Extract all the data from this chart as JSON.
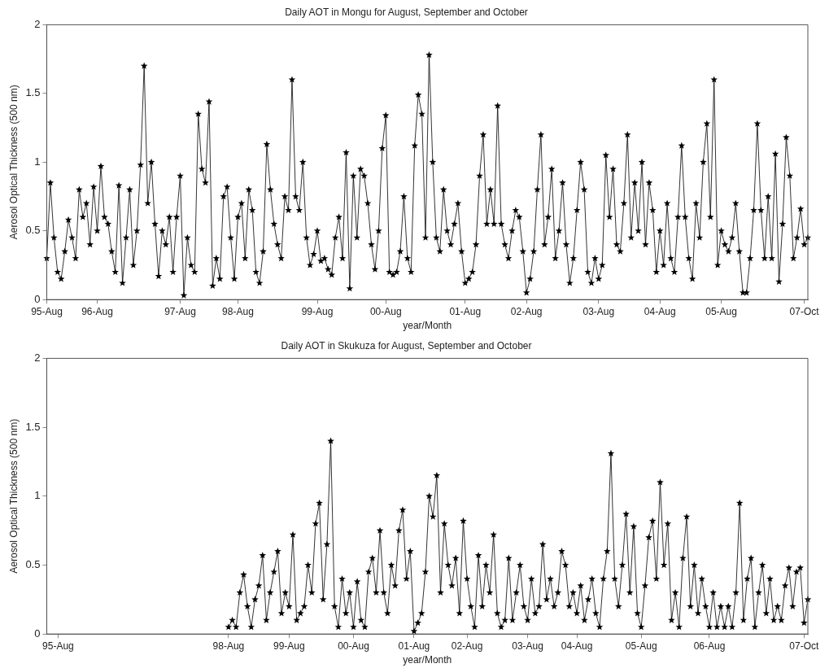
{
  "chart_data": [
    {
      "type": "line",
      "title": "Daily AOT in Mongu for August, September and October",
      "xlabel": "year/Month",
      "ylabel": "Aerosol Optical Thickness (500 nm)",
      "color": "#000000",
      "marker": "star",
      "grid": false,
      "categories": [
        "95-Aug",
        null,
        null,
        null,
        null,
        null,
        null,
        null,
        null,
        null,
        null,
        null,
        null,
        null,
        "96-Aug",
        null,
        null,
        null,
        null,
        null,
        null,
        null,
        null,
        null,
        null,
        null,
        null,
        null,
        null,
        null,
        null,
        null,
        null,
        null,
        null,
        null,
        null,
        "97-Aug",
        null,
        null,
        null,
        null,
        null,
        null,
        null,
        null,
        null,
        null,
        null,
        null,
        null,
        null,
        null,
        "98-Aug",
        null,
        null,
        null,
        null,
        null,
        null,
        null,
        null,
        null,
        null,
        null,
        null,
        null,
        null,
        null,
        null,
        null,
        null,
        null,
        null,
        null,
        "99-Aug",
        null,
        null,
        null,
        null,
        null,
        null,
        null,
        null,
        null,
        null,
        null,
        null,
        null,
        null,
        null,
        null,
        null,
        null,
        "00-Aug",
        null,
        null,
        null,
        null,
        null,
        null,
        null,
        null,
        null,
        null,
        null,
        null,
        null,
        null,
        null,
        null,
        null,
        null,
        null,
        null,
        null,
        "01-Aug",
        null,
        null,
        null,
        null,
        null,
        null,
        null,
        null,
        null,
        null,
        null,
        null,
        null,
        null,
        null,
        null,
        "02-Aug",
        null,
        null,
        null,
        null,
        null,
        null,
        null,
        null,
        null,
        null,
        null,
        null,
        null,
        null,
        null,
        null,
        null,
        null,
        null,
        "03-Aug",
        null,
        null,
        null,
        null,
        null,
        null,
        null,
        null,
        null,
        null,
        null,
        null,
        null,
        null,
        null,
        null,
        "04-Aug",
        null,
        null,
        null,
        null,
        null,
        null,
        null,
        null,
        null,
        null,
        null,
        null,
        null,
        null,
        null,
        null,
        "05-Aug",
        null,
        null,
        null,
        null,
        null,
        null,
        null,
        null,
        null,
        null,
        null,
        null,
        null,
        null,
        null,
        null,
        null,
        null,
        null,
        null,
        null,
        null,
        "07-Oct",
        null
      ],
      "ylim": [
        0,
        2
      ],
      "yticks": [
        0,
        0.5,
        1,
        1.5,
        2
      ],
      "values": [
        0.3,
        0.85,
        0.45,
        0.2,
        0.15,
        0.35,
        0.58,
        0.45,
        0.3,
        0.8,
        0.6,
        0.7,
        0.4,
        0.82,
        0.5,
        0.97,
        0.6,
        0.55,
        0.35,
        0.2,
        0.83,
        0.12,
        0.45,
        0.8,
        0.25,
        0.5,
        0.98,
        1.7,
        0.7,
        1.0,
        0.55,
        0.17,
        0.5,
        0.4,
        0.6,
        0.2,
        0.6,
        0.9,
        0.03,
        0.45,
        0.25,
        0.2,
        1.35,
        0.95,
        0.85,
        1.44,
        0.1,
        0.3,
        0.15,
        0.75,
        0.82,
        0.45,
        0.15,
        0.6,
        0.7,
        0.3,
        0.8,
        0.65,
        0.2,
        0.12,
        0.35,
        1.13,
        0.8,
        0.55,
        0.4,
        0.3,
        0.75,
        0.65,
        1.6,
        0.75,
        0.65,
        1.0,
        0.45,
        0.25,
        0.33,
        0.5,
        0.28,
        0.3,
        0.22,
        0.18,
        0.45,
        0.6,
        0.3,
        1.07,
        0.08,
        0.9,
        0.45,
        0.95,
        0.9,
        0.7,
        0.4,
        0.22,
        0.5,
        1.1,
        1.34,
        0.2,
        0.18,
        0.2,
        0.35,
        0.75,
        0.3,
        0.2,
        1.12,
        1.49,
        1.35,
        0.45,
        1.78,
        1.0,
        0.45,
        0.35,
        0.8,
        0.5,
        0.4,
        0.55,
        0.7,
        0.35,
        0.12,
        0.15,
        0.2,
        0.4,
        0.9,
        1.2,
        0.55,
        0.8,
        0.55,
        1.41,
        0.55,
        0.4,
        0.3,
        0.5,
        0.65,
        0.6,
        0.35,
        0.05,
        0.15,
        0.35,
        0.8,
        1.2,
        0.4,
        0.6,
        0.95,
        0.3,
        0.5,
        0.85,
        0.4,
        0.12,
        0.3,
        0.65,
        1.0,
        0.8,
        0.2,
        0.12,
        0.3,
        0.15,
        0.25,
        1.05,
        0.6,
        0.95,
        0.4,
        0.35,
        0.7,
        1.2,
        0.45,
        0.85,
        0.5,
        1.0,
        0.4,
        0.85,
        0.65,
        0.2,
        0.5,
        0.25,
        0.7,
        0.3,
        0.2,
        0.6,
        1.12,
        0.6,
        0.3,
        0.15,
        0.7,
        0.45,
        1.0,
        1.28,
        0.6,
        1.6,
        0.25,
        0.5,
        0.4,
        0.35,
        0.45,
        0.7,
        0.35,
        0.05,
        0.05,
        0.3,
        0.65,
        1.28,
        0.65,
        0.3,
        0.75,
        0.3,
        1.06,
        0.13,
        0.55,
        1.18,
        0.9,
        0.3,
        0.45,
        0.66,
        0.4,
        0.45
      ]
    },
    {
      "type": "line",
      "title": "Daily AOT in Skukuza for August, September and October",
      "xlabel": "year/Month",
      "ylabel": "Aerosol Optical Thickness (500 nm)",
      "color": "#000000",
      "marker": "star",
      "grid": false,
      "categories": [
        null,
        null,
        null,
        "95-Aug",
        null,
        null,
        null,
        null,
        null,
        null,
        null,
        null,
        null,
        null,
        null,
        null,
        null,
        null,
        null,
        null,
        null,
        null,
        null,
        null,
        null,
        null,
        null,
        null,
        null,
        null,
        null,
        null,
        null,
        null,
        null,
        null,
        null,
        null,
        null,
        null,
        null,
        null,
        null,
        null,
        null,
        null,
        null,
        null,
        "98-Aug",
        null,
        null,
        null,
        null,
        null,
        null,
        null,
        null,
        null,
        null,
        null,
        null,
        null,
        null,
        null,
        "99-Aug",
        null,
        null,
        null,
        null,
        null,
        null,
        null,
        null,
        null,
        null,
        null,
        null,
        null,
        null,
        null,
        null,
        "00-Aug",
        null,
        null,
        null,
        null,
        null,
        null,
        null,
        null,
        null,
        null,
        null,
        null,
        null,
        null,
        null,
        "01-Aug",
        null,
        null,
        null,
        null,
        null,
        null,
        null,
        null,
        null,
        null,
        null,
        null,
        null,
        "02-Aug",
        null,
        null,
        null,
        null,
        null,
        null,
        null,
        null,
        null,
        null,
        null,
        null,
        null,
        null,
        null,
        "03-Aug",
        null,
        null,
        null,
        null,
        null,
        null,
        null,
        null,
        null,
        null,
        null,
        null,
        "04-Aug",
        null,
        null,
        null,
        null,
        null,
        null,
        null,
        null,
        null,
        null,
        null,
        null,
        null,
        null,
        null,
        null,
        "05-Aug",
        null,
        null,
        null,
        null,
        null,
        null,
        null,
        null,
        null,
        null,
        null,
        null,
        null,
        null,
        null,
        null,
        null,
        "06-Aug",
        null,
        null,
        null,
        null,
        null,
        null,
        null,
        null,
        null,
        null,
        null,
        null,
        null,
        null,
        null,
        null,
        null,
        null,
        null,
        null,
        null,
        null,
        null,
        null,
        "07-Oct",
        null
      ],
      "ylim": [
        0,
        2
      ],
      "yticks": [
        0,
        0.5,
        1,
        1.5,
        2
      ],
      "values": [
        null,
        null,
        null,
        null,
        null,
        null,
        null,
        null,
        null,
        null,
        null,
        null,
        null,
        null,
        null,
        null,
        null,
        null,
        null,
        null,
        null,
        null,
        null,
        null,
        null,
        null,
        null,
        null,
        null,
        null,
        null,
        null,
        null,
        null,
        null,
        null,
        null,
        null,
        null,
        null,
        null,
        null,
        null,
        null,
        null,
        null,
        null,
        null,
        0.05,
        0.1,
        0.05,
        0.3,
        0.43,
        0.2,
        0.05,
        0.25,
        0.35,
        0.57,
        0.1,
        0.3,
        0.45,
        0.6,
        0.15,
        0.3,
        0.2,
        0.72,
        0.1,
        0.15,
        0.2,
        0.5,
        0.3,
        0.8,
        0.95,
        0.25,
        0.65,
        1.4,
        0.2,
        0.05,
        0.4,
        0.15,
        0.3,
        0.05,
        0.38,
        0.1,
        0.05,
        0.45,
        0.55,
        0.3,
        0.75,
        0.3,
        0.15,
        0.5,
        0.35,
        0.75,
        0.9,
        0.4,
        0.6,
        0.02,
        0.08,
        0.15,
        0.45,
        1.0,
        0.85,
        1.15,
        0.3,
        0.8,
        0.5,
        0.35,
        0.55,
        0.15,
        0.82,
        0.4,
        0.2,
        0.05,
        0.57,
        0.2,
        0.5,
        0.3,
        0.72,
        0.15,
        0.05,
        0.1,
        0.55,
        0.1,
        0.3,
        0.5,
        0.2,
        0.1,
        0.4,
        0.15,
        0.2,
        0.65,
        0.25,
        0.4,
        0.2,
        0.3,
        0.6,
        0.5,
        0.2,
        0.3,
        0.15,
        0.35,
        0.1,
        0.25,
        0.4,
        0.15,
        0.05,
        0.4,
        0.6,
        1.31,
        0.4,
        0.2,
        0.5,
        0.87,
        0.3,
        0.78,
        0.15,
        0.05,
        0.35,
        0.7,
        0.82,
        0.4,
        1.1,
        0.5,
        0.8,
        0.1,
        0.3,
        0.05,
        0.55,
        0.85,
        0.2,
        0.5,
        0.15,
        0.4,
        0.2,
        0.05,
        0.3,
        0.05,
        0.2,
        0.05,
        0.2,
        0.05,
        0.3,
        0.95,
        0.1,
        0.4,
        0.55,
        0.05,
        0.3,
        0.5,
        0.15,
        0.4,
        0.1,
        0.2,
        0.1,
        0.35,
        0.48,
        0.2,
        0.45,
        0.48,
        0.08,
        0.25
      ]
    }
  ]
}
